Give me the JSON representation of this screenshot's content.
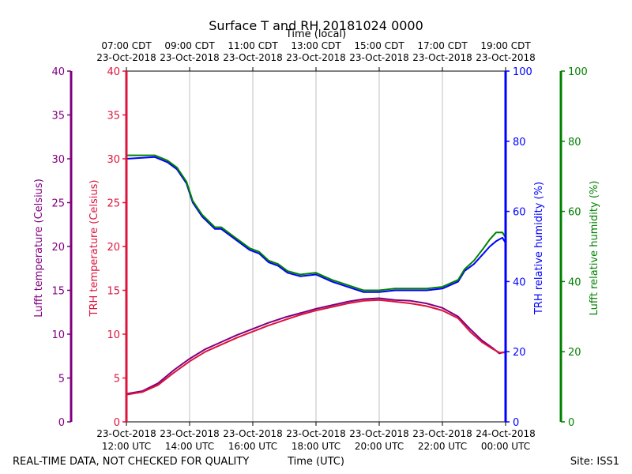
{
  "chart_data": {
    "type": "line",
    "title": "Surface T and RH 20181024 0000",
    "top_axis_label": "Time (local)",
    "xlabel": "Time (UTC)",
    "footer_left": "REAL-TIME DATA, NOT CHECKED FOR QUALITY",
    "footer_right": "Site: ISS1",
    "x_unit": "hours_utc",
    "xlim": [
      12,
      24
    ],
    "x_ticks": [
      {
        "x": 12,
        "date": "23-Oct-2018",
        "time": "12:00 UTC",
        "local_time": "07:00 CDT",
        "local_date": "23-Oct-2018"
      },
      {
        "x": 14,
        "date": "23-Oct-2018",
        "time": "14:00 UTC",
        "local_time": "09:00 CDT",
        "local_date": "23-Oct-2018"
      },
      {
        "x": 16,
        "date": "23-Oct-2018",
        "time": "16:00 UTC",
        "local_time": "11:00 CDT",
        "local_date": "23-Oct-2018"
      },
      {
        "x": 18,
        "date": "23-Oct-2018",
        "time": "18:00 UTC",
        "local_time": "13:00 CDT",
        "local_date": "23-Oct-2018"
      },
      {
        "x": 20,
        "date": "23-Oct-2018",
        "time": "20:00 UTC",
        "local_time": "15:00 CDT",
        "local_date": "23-Oct-2018"
      },
      {
        "x": 22,
        "date": "23-Oct-2018",
        "time": "22:00 UTC",
        "local_time": "17:00 CDT",
        "local_date": "23-Oct-2018"
      },
      {
        "x": 24,
        "date": "24-Oct-2018",
        "time": "00:00 UTC",
        "local_time": "19:00 CDT",
        "local_date": "23-Oct-2018"
      }
    ],
    "axes": [
      {
        "id": "lufft_temp",
        "label": "Lufft temperature (Celsius)",
        "color": "#800080",
        "ylim": [
          0,
          40
        ],
        "ticks": [
          0,
          5,
          10,
          15,
          20,
          25,
          30,
          35,
          40
        ],
        "side": "left-outer"
      },
      {
        "id": "trh_temp",
        "label": "TRH temperature (Celsius)",
        "color": "#dc143c",
        "ylim": [
          0,
          40
        ],
        "ticks": [
          0,
          5,
          10,
          15,
          20,
          25,
          30,
          35,
          40
        ],
        "side": "left-inner"
      },
      {
        "id": "trh_rh",
        "label": "TRH relative humidity (%)",
        "color": "#0000ff",
        "ylim": [
          0,
          100
        ],
        "ticks": [
          0,
          20,
          40,
          60,
          80,
          100
        ],
        "side": "right-inner"
      },
      {
        "id": "lufft_rh",
        "label": "Lufft relative humidity (%)",
        "color": "#008000",
        "ylim": [
          0,
          100
        ],
        "ticks": [
          0,
          20,
          40,
          60,
          80,
          100
        ],
        "side": "right-outer"
      }
    ],
    "series": [
      {
        "name": "Lufft temperature",
        "axis": "lufft_temp",
        "color": "#800080",
        "x": [
          12.0,
          12.5,
          13.0,
          13.5,
          14.0,
          14.5,
          15.0,
          15.5,
          16.0,
          16.5,
          17.0,
          17.5,
          18.0,
          18.5,
          19.0,
          19.5,
          20.0,
          20.5,
          21.0,
          21.5,
          22.0,
          22.5,
          22.9,
          23.25,
          23.6,
          23.8,
          24.0
        ],
        "values": [
          3.2,
          3.5,
          4.4,
          5.9,
          7.2,
          8.3,
          9.1,
          9.9,
          10.6,
          11.3,
          11.9,
          12.4,
          12.9,
          13.3,
          13.7,
          14.0,
          14.1,
          13.9,
          13.8,
          13.5,
          13.0,
          12.0,
          10.5,
          9.3,
          8.4,
          7.8,
          8.0
        ]
      },
      {
        "name": "TRH temperature",
        "axis": "trh_temp",
        "color": "#dc143c",
        "x": [
          12.0,
          12.5,
          13.0,
          13.5,
          14.0,
          14.5,
          15.0,
          15.5,
          16.0,
          16.5,
          17.0,
          17.5,
          18.0,
          18.5,
          19.0,
          19.5,
          20.0,
          20.5,
          21.0,
          21.5,
          22.0,
          22.5,
          22.9,
          23.25,
          23.6,
          23.8,
          24.0
        ],
        "values": [
          3.1,
          3.4,
          4.2,
          5.6,
          6.9,
          8.0,
          8.8,
          9.6,
          10.3,
          11.0,
          11.6,
          12.2,
          12.7,
          13.1,
          13.5,
          13.8,
          13.9,
          13.7,
          13.5,
          13.2,
          12.7,
          11.8,
          10.2,
          9.1,
          8.3,
          7.9,
          7.9
        ]
      },
      {
        "name": "TRH relative humidity",
        "axis": "trh_rh",
        "color": "#0000ff",
        "x": [
          12.0,
          12.5,
          12.9,
          13.3,
          13.6,
          13.9,
          14.1,
          14.4,
          14.8,
          15.0,
          15.3,
          15.6,
          15.9,
          16.2,
          16.5,
          16.8,
          17.1,
          17.5,
          18.0,
          18.5,
          19.0,
          19.5,
          20.0,
          20.5,
          21.0,
          21.5,
          22.0,
          22.5,
          22.7,
          23.0,
          23.3,
          23.5,
          23.7,
          23.9,
          24.0
        ],
        "values": [
          75.0,
          75.3,
          75.5,
          74.0,
          72.0,
          68.0,
          62.5,
          58.5,
          55.0,
          55.0,
          53.0,
          51.0,
          49.0,
          48.0,
          45.5,
          44.5,
          42.5,
          41.5,
          42.0,
          40.0,
          38.5,
          37.0,
          37.0,
          37.5,
          37.5,
          37.5,
          38.0,
          40.0,
          43.0,
          45.0,
          48.0,
          50.0,
          51.5,
          52.5,
          51.0
        ]
      },
      {
        "name": "Lufft relative humidity",
        "axis": "lufft_rh",
        "color": "#008000",
        "x": [
          12.0,
          12.5,
          12.9,
          13.3,
          13.6,
          13.9,
          14.1,
          14.4,
          14.8,
          15.0,
          15.3,
          15.6,
          15.9,
          16.2,
          16.5,
          16.8,
          17.1,
          17.5,
          18.0,
          18.5,
          19.0,
          19.5,
          20.0,
          20.5,
          21.0,
          21.5,
          22.0,
          22.5,
          22.7,
          23.0,
          23.3,
          23.5,
          23.7,
          23.9,
          24.0
        ],
        "values": [
          76.0,
          76.0,
          76.0,
          74.5,
          72.5,
          68.5,
          63.0,
          59.0,
          55.5,
          55.5,
          53.5,
          51.5,
          49.5,
          48.5,
          46.0,
          45.0,
          43.0,
          42.0,
          42.5,
          40.5,
          39.0,
          37.5,
          37.5,
          38.0,
          38.0,
          38.0,
          38.5,
          40.5,
          43.5,
          46.0,
          49.5,
          52.0,
          54.0,
          54.0,
          52.5
        ]
      }
    ],
    "grid": "vertical"
  }
}
